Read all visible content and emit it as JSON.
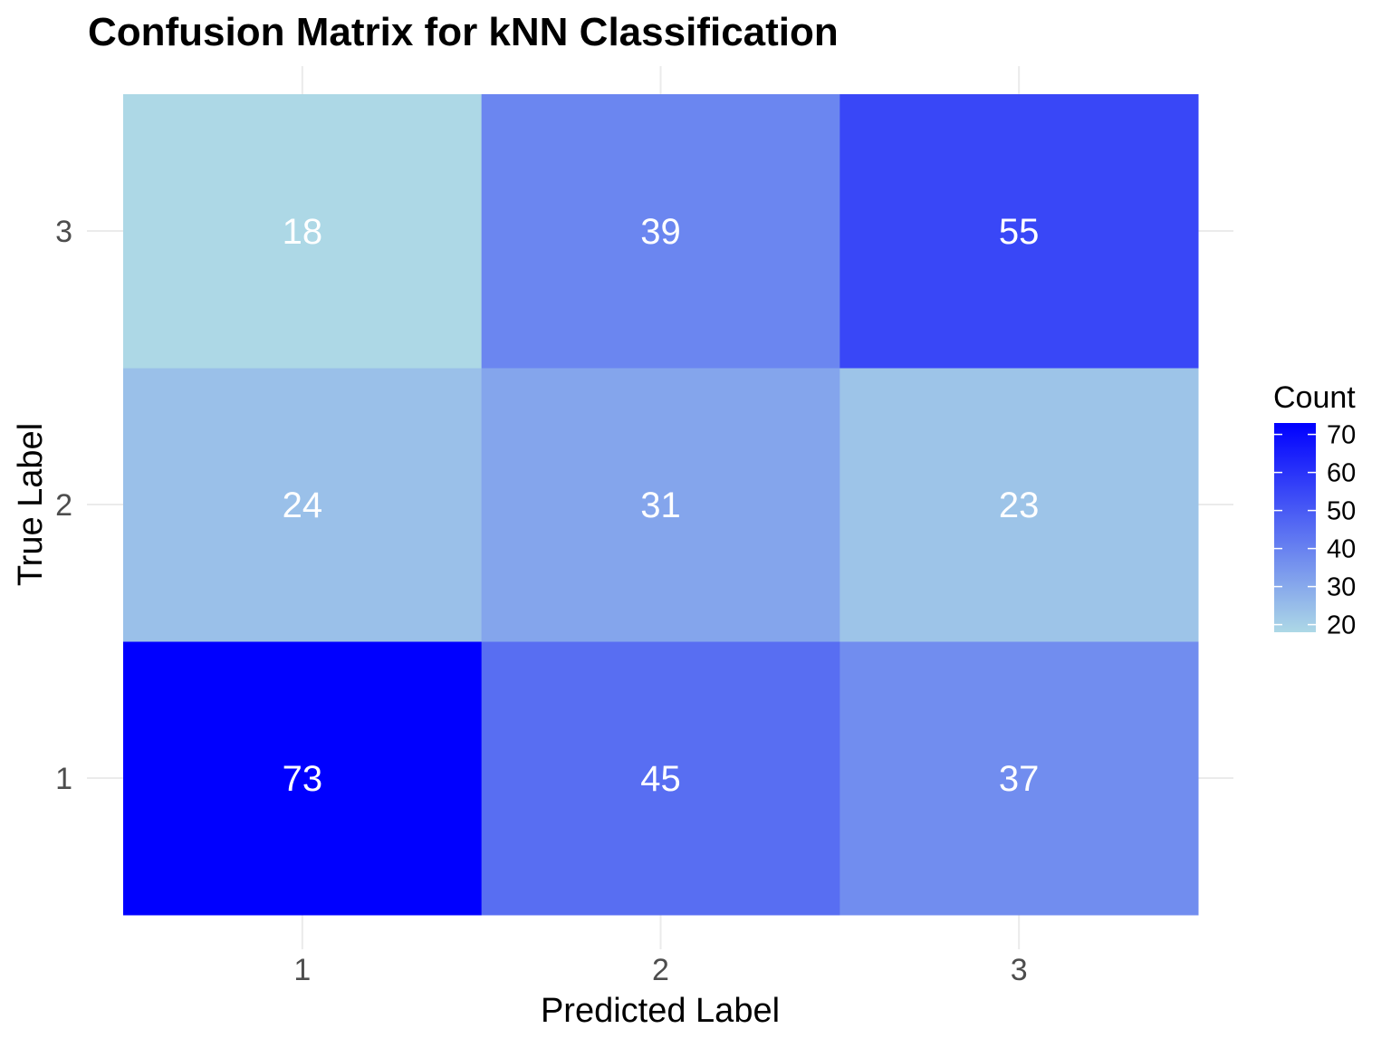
{
  "chart_data": {
    "type": "heatmap",
    "title": "Confusion Matrix for kNN Classification",
    "xlabel": "Predicted Label",
    "ylabel": "True Label",
    "x_categories": [
      "1",
      "2",
      "3"
    ],
    "y_categories": [
      "1",
      "2",
      "3"
    ],
    "cells": [
      {
        "true": "1",
        "predicted": "1",
        "count": 73
      },
      {
        "true": "1",
        "predicted": "2",
        "count": 45
      },
      {
        "true": "1",
        "predicted": "3",
        "count": 37
      },
      {
        "true": "2",
        "predicted": "1",
        "count": 24
      },
      {
        "true": "2",
        "predicted": "2",
        "count": 31
      },
      {
        "true": "2",
        "predicted": "3",
        "count": 23
      },
      {
        "true": "3",
        "predicted": "1",
        "count": 18
      },
      {
        "true": "3",
        "predicted": "2",
        "count": 39
      },
      {
        "true": "3",
        "predicted": "3",
        "count": 55
      }
    ],
    "legend": {
      "title": "Count",
      "placement": "right",
      "ticks": [
        20,
        30,
        40,
        50,
        60,
        70
      ],
      "range": [
        18,
        73
      ],
      "low_color": "#add8e6",
      "high_color": "#0000ff"
    },
    "cell_label_color": "#ffffff",
    "grid": true
  }
}
